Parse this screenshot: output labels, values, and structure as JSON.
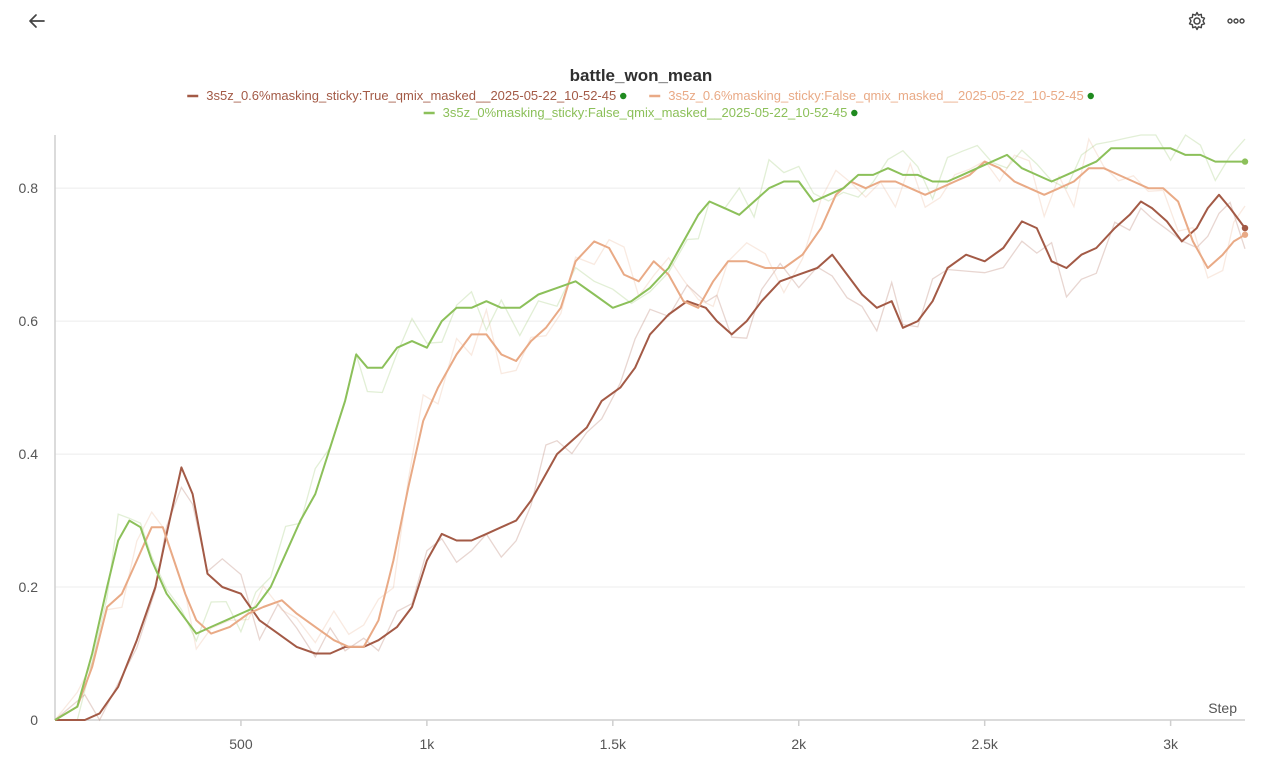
{
  "header": {
    "back_icon": "arrow-left-icon",
    "settings_icon": "gear-icon",
    "more_icon": "more-horizontal-icon"
  },
  "colors": {
    "series_dark": "#a35a46",
    "series_light": "#e9aa86",
    "series_green": "#8cc05a",
    "status_dot": "#1f8a1f",
    "grid": "#ececec",
    "axis": "#cfcfcf"
  },
  "chart_data": {
    "type": "line",
    "title": "battle_won_mean",
    "xlabel": "Step",
    "ylabel": "",
    "xlim": [
      0,
      3200
    ],
    "ylim": [
      0,
      0.88
    ],
    "grid": true,
    "legend_placement": "top",
    "x_ticks": [
      {
        "value": 500,
        "label": "500"
      },
      {
        "value": 1000,
        "label": "1k"
      },
      {
        "value": 1500,
        "label": "1.5k"
      },
      {
        "value": 2000,
        "label": "2k"
      },
      {
        "value": 2500,
        "label": "2.5k"
      },
      {
        "value": 3000,
        "label": "3k"
      }
    ],
    "y_ticks": [
      {
        "value": 0,
        "label": "0"
      },
      {
        "value": 0.2,
        "label": "0.2"
      },
      {
        "value": 0.4,
        "label": "0.4"
      },
      {
        "value": 0.6,
        "label": "0.6"
      },
      {
        "value": 0.8,
        "label": "0.8"
      }
    ],
    "series": [
      {
        "name": "3s5z_0.6%masking_sticky:True_qmix_masked__2025-05-22_10-52-45",
        "color": "#a35a46",
        "points": [
          [
            0,
            0
          ],
          [
            80,
            0
          ],
          [
            120,
            0.01
          ],
          [
            170,
            0.05
          ],
          [
            220,
            0.12
          ],
          [
            270,
            0.2
          ],
          [
            300,
            0.28
          ],
          [
            340,
            0.38
          ],
          [
            370,
            0.34
          ],
          [
            410,
            0.22
          ],
          [
            450,
            0.2
          ],
          [
            500,
            0.19
          ],
          [
            550,
            0.15
          ],
          [
            600,
            0.13
          ],
          [
            650,
            0.11
          ],
          [
            700,
            0.1
          ],
          [
            740,
            0.1
          ],
          [
            780,
            0.11
          ],
          [
            830,
            0.11
          ],
          [
            870,
            0.12
          ],
          [
            920,
            0.14
          ],
          [
            960,
            0.17
          ],
          [
            1000,
            0.24
          ],
          [
            1040,
            0.28
          ],
          [
            1080,
            0.27
          ],
          [
            1120,
            0.27
          ],
          [
            1160,
            0.28
          ],
          [
            1200,
            0.29
          ],
          [
            1240,
            0.3
          ],
          [
            1280,
            0.33
          ],
          [
            1320,
            0.37
          ],
          [
            1350,
            0.4
          ],
          [
            1390,
            0.42
          ],
          [
            1430,
            0.44
          ],
          [
            1470,
            0.48
          ],
          [
            1520,
            0.5
          ],
          [
            1560,
            0.53
          ],
          [
            1600,
            0.58
          ],
          [
            1650,
            0.61
          ],
          [
            1700,
            0.63
          ],
          [
            1750,
            0.62
          ],
          [
            1780,
            0.6
          ],
          [
            1820,
            0.58
          ],
          [
            1860,
            0.6
          ],
          [
            1900,
            0.63
          ],
          [
            1950,
            0.66
          ],
          [
            2000,
            0.67
          ],
          [
            2050,
            0.68
          ],
          [
            2090,
            0.7
          ],
          [
            2130,
            0.67
          ],
          [
            2170,
            0.64
          ],
          [
            2210,
            0.62
          ],
          [
            2250,
            0.63
          ],
          [
            2280,
            0.59
          ],
          [
            2320,
            0.6
          ],
          [
            2360,
            0.63
          ],
          [
            2400,
            0.68
          ],
          [
            2450,
            0.7
          ],
          [
            2500,
            0.69
          ],
          [
            2550,
            0.71
          ],
          [
            2600,
            0.75
          ],
          [
            2640,
            0.74
          ],
          [
            2680,
            0.69
          ],
          [
            2720,
            0.68
          ],
          [
            2760,
            0.7
          ],
          [
            2800,
            0.71
          ],
          [
            2850,
            0.74
          ],
          [
            2890,
            0.76
          ],
          [
            2920,
            0.78
          ],
          [
            2950,
            0.77
          ],
          [
            2990,
            0.75
          ],
          [
            3030,
            0.72
          ],
          [
            3070,
            0.74
          ],
          [
            3100,
            0.77
          ],
          [
            3130,
            0.79
          ],
          [
            3160,
            0.77
          ],
          [
            3200,
            0.74
          ]
        ]
      },
      {
        "name": "3s5z_0.6%masking_sticky:False_qmix_masked__2025-05-22_10-52-45",
        "color": "#e9aa86",
        "points": [
          [
            0,
            0
          ],
          [
            60,
            0.02
          ],
          [
            100,
            0.08
          ],
          [
            140,
            0.17
          ],
          [
            180,
            0.19
          ],
          [
            220,
            0.24
          ],
          [
            260,
            0.29
          ],
          [
            290,
            0.29
          ],
          [
            320,
            0.24
          ],
          [
            350,
            0.19
          ],
          [
            380,
            0.15
          ],
          [
            420,
            0.13
          ],
          [
            470,
            0.14
          ],
          [
            520,
            0.16
          ],
          [
            560,
            0.17
          ],
          [
            610,
            0.18
          ],
          [
            650,
            0.16
          ],
          [
            700,
            0.14
          ],
          [
            750,
            0.12
          ],
          [
            790,
            0.11
          ],
          [
            830,
            0.11
          ],
          [
            870,
            0.15
          ],
          [
            910,
            0.24
          ],
          [
            950,
            0.35
          ],
          [
            990,
            0.45
          ],
          [
            1030,
            0.5
          ],
          [
            1080,
            0.55
          ],
          [
            1120,
            0.58
          ],
          [
            1160,
            0.58
          ],
          [
            1200,
            0.55
          ],
          [
            1240,
            0.54
          ],
          [
            1280,
            0.57
          ],
          [
            1320,
            0.59
          ],
          [
            1360,
            0.62
          ],
          [
            1400,
            0.69
          ],
          [
            1450,
            0.72
          ],
          [
            1490,
            0.71
          ],
          [
            1530,
            0.67
          ],
          [
            1570,
            0.66
          ],
          [
            1610,
            0.69
          ],
          [
            1650,
            0.67
          ],
          [
            1690,
            0.63
          ],
          [
            1730,
            0.62
          ],
          [
            1770,
            0.66
          ],
          [
            1810,
            0.69
          ],
          [
            1860,
            0.69
          ],
          [
            1910,
            0.68
          ],
          [
            1960,
            0.68
          ],
          [
            2010,
            0.7
          ],
          [
            2060,
            0.74
          ],
          [
            2100,
            0.79
          ],
          [
            2140,
            0.81
          ],
          [
            2180,
            0.8
          ],
          [
            2220,
            0.81
          ],
          [
            2260,
            0.81
          ],
          [
            2300,
            0.8
          ],
          [
            2340,
            0.79
          ],
          [
            2380,
            0.8
          ],
          [
            2420,
            0.81
          ],
          [
            2460,
            0.82
          ],
          [
            2500,
            0.84
          ],
          [
            2540,
            0.83
          ],
          [
            2580,
            0.81
          ],
          [
            2620,
            0.8
          ],
          [
            2660,
            0.79
          ],
          [
            2700,
            0.8
          ],
          [
            2740,
            0.81
          ],
          [
            2780,
            0.83
          ],
          [
            2820,
            0.83
          ],
          [
            2860,
            0.82
          ],
          [
            2900,
            0.81
          ],
          [
            2940,
            0.8
          ],
          [
            2980,
            0.8
          ],
          [
            3020,
            0.78
          ],
          [
            3060,
            0.72
          ],
          [
            3100,
            0.68
          ],
          [
            3140,
            0.7
          ],
          [
            3170,
            0.72
          ],
          [
            3200,
            0.73
          ]
        ]
      },
      {
        "name": "3s5z_0%masking_sticky:False_qmix_masked__2025-05-22_10-52-45",
        "color": "#8cc05a",
        "points": [
          [
            0,
            0
          ],
          [
            60,
            0.02
          ],
          [
            100,
            0.1
          ],
          [
            140,
            0.2
          ],
          [
            170,
            0.27
          ],
          [
            200,
            0.3
          ],
          [
            230,
            0.29
          ],
          [
            260,
            0.24
          ],
          [
            300,
            0.19
          ],
          [
            340,
            0.16
          ],
          [
            380,
            0.13
          ],
          [
            420,
            0.14
          ],
          [
            460,
            0.15
          ],
          [
            500,
            0.16
          ],
          [
            540,
            0.17
          ],
          [
            580,
            0.2
          ],
          [
            620,
            0.25
          ],
          [
            660,
            0.3
          ],
          [
            700,
            0.34
          ],
          [
            740,
            0.41
          ],
          [
            780,
            0.48
          ],
          [
            810,
            0.55
          ],
          [
            840,
            0.53
          ],
          [
            880,
            0.53
          ],
          [
            920,
            0.56
          ],
          [
            960,
            0.57
          ],
          [
            1000,
            0.56
          ],
          [
            1040,
            0.6
          ],
          [
            1080,
            0.62
          ],
          [
            1120,
            0.62
          ],
          [
            1160,
            0.63
          ],
          [
            1200,
            0.62
          ],
          [
            1250,
            0.62
          ],
          [
            1300,
            0.64
          ],
          [
            1350,
            0.65
          ],
          [
            1400,
            0.66
          ],
          [
            1450,
            0.64
          ],
          [
            1500,
            0.62
          ],
          [
            1550,
            0.63
          ],
          [
            1600,
            0.65
          ],
          [
            1650,
            0.68
          ],
          [
            1700,
            0.73
          ],
          [
            1730,
            0.76
          ],
          [
            1760,
            0.78
          ],
          [
            1800,
            0.77
          ],
          [
            1840,
            0.76
          ],
          [
            1880,
            0.78
          ],
          [
            1920,
            0.8
          ],
          [
            1960,
            0.81
          ],
          [
            2000,
            0.81
          ],
          [
            2040,
            0.78
          ],
          [
            2080,
            0.79
          ],
          [
            2120,
            0.8
          ],
          [
            2160,
            0.82
          ],
          [
            2200,
            0.82
          ],
          [
            2240,
            0.83
          ],
          [
            2280,
            0.82
          ],
          [
            2320,
            0.82
          ],
          [
            2360,
            0.81
          ],
          [
            2400,
            0.81
          ],
          [
            2440,
            0.82
          ],
          [
            2480,
            0.83
          ],
          [
            2520,
            0.84
          ],
          [
            2560,
            0.85
          ],
          [
            2600,
            0.83
          ],
          [
            2640,
            0.82
          ],
          [
            2680,
            0.81
          ],
          [
            2720,
            0.82
          ],
          [
            2760,
            0.83
          ],
          [
            2800,
            0.84
          ],
          [
            2840,
            0.86
          ],
          [
            2880,
            0.86
          ],
          [
            2920,
            0.86
          ],
          [
            2960,
            0.86
          ],
          [
            3000,
            0.86
          ],
          [
            3040,
            0.85
          ],
          [
            3080,
            0.85
          ],
          [
            3120,
            0.84
          ],
          [
            3160,
            0.84
          ],
          [
            3200,
            0.84
          ]
        ]
      }
    ]
  }
}
